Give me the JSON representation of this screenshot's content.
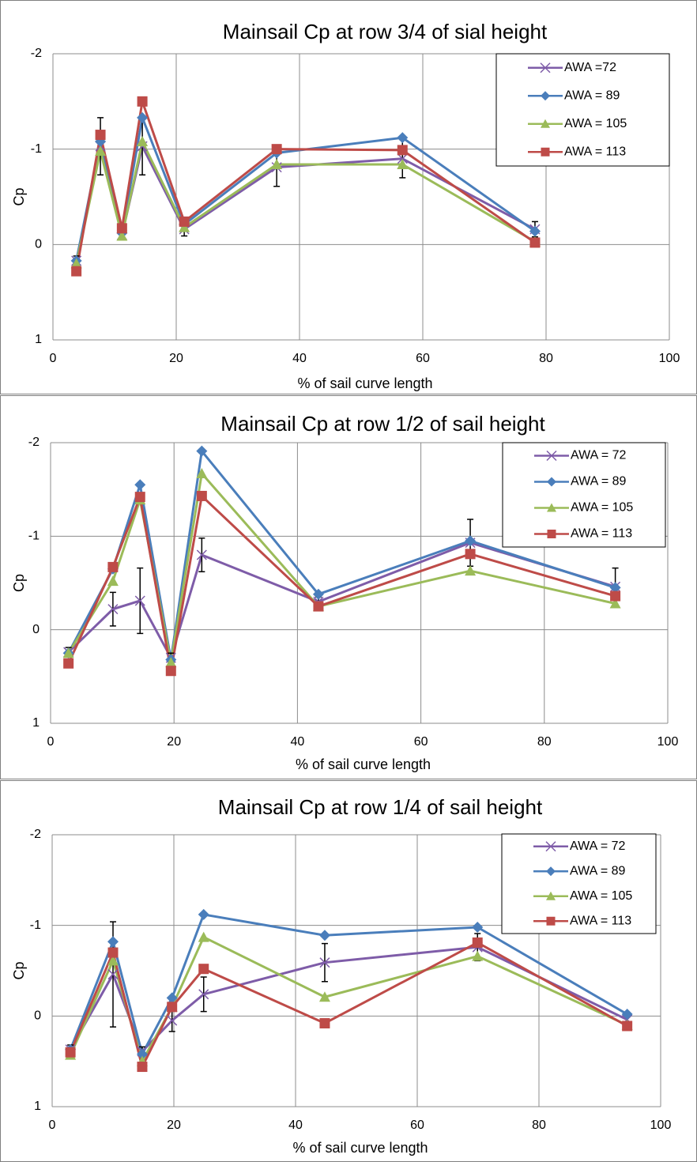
{
  "chart_data": [
    {
      "type": "line",
      "title": "Mainsail Cp at row 3/4 of sial height",
      "x_label": "% of sail curve length",
      "y_label": "Cp",
      "x": [
        3.8,
        7.7,
        11.2,
        14.5,
        21.3,
        36.3,
        56.7,
        78.2
      ],
      "xlim": [
        0,
        100
      ],
      "xticks": [
        0,
        20,
        40,
        60,
        80,
        100
      ],
      "ylim": [
        -2,
        1
      ],
      "yticks": [
        -2,
        -1,
        0,
        1
      ],
      "y_inverted": true,
      "grid": true,
      "legend": "upper right",
      "series": [
        {
          "name": "AWA =72",
          "color": "#7e5ca8",
          "marker": "x",
          "values": [
            0.17,
            -1.03,
            -0.1,
            -1.03,
            -0.16,
            -0.81,
            -0.9,
            -0.16
          ],
          "errors": [
            0.05,
            0.3,
            0.05,
            0.3,
            0.07,
            0.2,
            0.2,
            0.08
          ]
        },
        {
          "name": "AWA = 89",
          "color": "#4a7ebb",
          "marker": "diamond",
          "values": [
            0.17,
            -1.08,
            -0.12,
            -1.33,
            -0.21,
            -0.96,
            -1.12,
            -0.14
          ]
        },
        {
          "name": "AWA = 105",
          "color": "#9bbb59",
          "marker": "triangle",
          "values": [
            0.2,
            -0.98,
            -0.09,
            -1.08,
            -0.18,
            -0.84,
            -0.84,
            -0.03
          ]
        },
        {
          "name": "AWA = 113",
          "color": "#be4b48",
          "marker": "square",
          "values": [
            0.28,
            -1.15,
            -0.17,
            -1.5,
            -0.24,
            -1.0,
            -0.99,
            -0.02
          ]
        }
      ]
    },
    {
      "type": "line",
      "title": "Mainsail Cp at row 1/2 of sail height",
      "x_label": "% of sail curve length",
      "y_label": "Cp",
      "x": [
        2.9,
        10.1,
        14.5,
        19.5,
        24.5,
        43.4,
        68,
        91.5
      ],
      "xlim": [
        0,
        100
      ],
      "xticks": [
        0,
        20,
        40,
        60,
        80,
        100
      ],
      "ylim": [
        -2,
        1
      ],
      "yticks": [
        -2,
        -1,
        0,
        1
      ],
      "y_inverted": true,
      "grid": true,
      "legend": "upper right",
      "series": [
        {
          "name": "AWA = 72",
          "color": "#7e5ca8",
          "marker": "x",
          "values": [
            0.24,
            -0.22,
            -0.31,
            0.3,
            -0.8,
            -0.3,
            -0.93,
            -0.46
          ],
          "errors": [
            0.05,
            0.18,
            0.35,
            0.05,
            0.18,
            0.05,
            0.25,
            0.2
          ]
        },
        {
          "name": "AWA = 89",
          "color": "#4a7ebb",
          "marker": "diamond",
          "values": [
            0.25,
            -0.65,
            -1.55,
            0.32,
            -1.91,
            -0.38,
            -0.95,
            -0.45
          ]
        },
        {
          "name": "AWA = 105",
          "color": "#9bbb59",
          "marker": "triangle",
          "values": [
            0.25,
            -0.52,
            -1.39,
            0.35,
            -1.67,
            -0.25,
            -0.63,
            -0.28
          ]
        },
        {
          "name": "AWA = 113",
          "color": "#be4b48",
          "marker": "square",
          "values": [
            0.36,
            -0.67,
            -1.42,
            0.44,
            -1.43,
            -0.25,
            -0.81,
            -0.36
          ]
        }
      ]
    },
    {
      "type": "line",
      "title": "Mainsail Cp at row 1/4 of sail height",
      "x_label": "% of sail curve length",
      "y_label": "Cp",
      "x": [
        3.0,
        10,
        14.8,
        19.7,
        24.9,
        44.8,
        69.9,
        94.5
      ],
      "xlim": [
        0,
        100
      ],
      "xticks": [
        0,
        20,
        40,
        60,
        80,
        100
      ],
      "ylim": [
        -2,
        1
      ],
      "yticks": [
        -2,
        -1,
        0,
        1
      ],
      "y_inverted": true,
      "grid": true,
      "legend": "upper right",
      "series": [
        {
          "name": "AWA = 72",
          "color": "#7e5ca8",
          "marker": "x",
          "values": [
            0.37,
            -0.46,
            0.39,
            0.05,
            -0.24,
            -0.59,
            -0.76,
            0.04
          ],
          "errors": [
            0.05,
            0.58,
            0.05,
            0.12,
            0.19,
            0.21,
            0.15,
            0.05
          ]
        },
        {
          "name": "AWA = 89",
          "color": "#4a7ebb",
          "marker": "diamond",
          "values": [
            0.37,
            -0.82,
            0.42,
            -0.2,
            -1.12,
            -0.89,
            -0.98,
            -0.02
          ]
        },
        {
          "name": "AWA = 105",
          "color": "#9bbb59",
          "marker": "triangle",
          "values": [
            0.43,
            -0.61,
            0.5,
            -0.1,
            -0.87,
            -0.21,
            -0.66,
            0.1
          ]
        },
        {
          "name": "AWA = 113",
          "color": "#be4b48",
          "marker": "square",
          "values": [
            0.4,
            -0.7,
            0.56,
            -0.1,
            -0.52,
            0.08,
            -0.81,
            0.11
          ]
        }
      ]
    }
  ]
}
